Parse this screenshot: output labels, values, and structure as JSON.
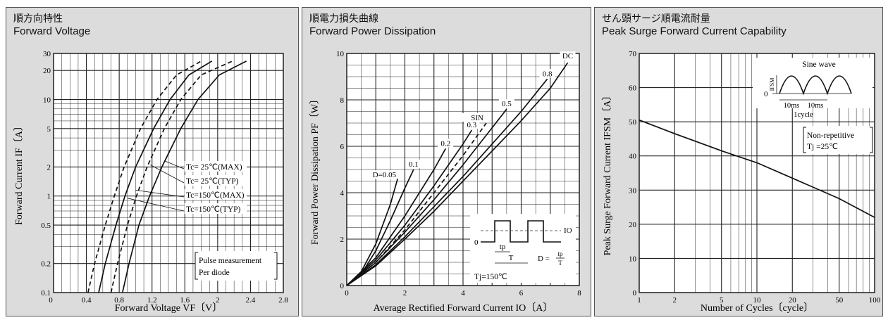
{
  "panels": [
    {
      "title_jp": "順方向特性",
      "title_en": "Forward Voltage"
    },
    {
      "title_jp": "順電力損失曲線",
      "title_en": "Forward Power Dissipation"
    },
    {
      "title_jp": "せん頭サージ順電流耐量",
      "title_en": "Peak Surge Forward Current Capability"
    }
  ],
  "chart_data": [
    {
      "type": "line",
      "title": "Forward Voltage",
      "xlabel": "Forward Voltage  VF〔V〕",
      "ylabel": "Forward Current  IF〔A〕",
      "xlim": [
        0,
        2.8
      ],
      "ylim": [
        0.1,
        30
      ],
      "yscale": "log",
      "x_ticks": [
        "0",
        "0.4",
        "0.8",
        "1.2",
        "1.6",
        "2",
        "2.4",
        "2.8"
      ],
      "y_ticks": [
        "0.1",
        "0.2",
        "0.5",
        "1",
        "2",
        "5",
        "10",
        "20",
        "30"
      ],
      "series": [
        {
          "name": "Tc= 25℃(MAX)",
          "dash": false,
          "points": [
            [
              0.84,
              0.1
            ],
            [
              0.92,
              0.2
            ],
            [
              1.04,
              0.5
            ],
            [
              1.17,
              1
            ],
            [
              1.32,
              2
            ],
            [
              1.55,
              5
            ],
            [
              1.76,
              10
            ],
            [
              2.02,
              18
            ],
            [
              2.35,
              25
            ]
          ]
        },
        {
          "name": "Tc= 25℃(TYP)",
          "dash": true,
          "points": [
            [
              0.7,
              0.1
            ],
            [
              0.78,
              0.2
            ],
            [
              0.9,
              0.5
            ],
            [
              1.01,
              1
            ],
            [
              1.14,
              2
            ],
            [
              1.35,
              5
            ],
            [
              1.55,
              10
            ],
            [
              1.8,
              18
            ],
            [
              2.18,
              25
            ]
          ]
        },
        {
          "name": "Tc=150℃(MAX)",
          "dash": false,
          "points": [
            [
              0.55,
              0.1
            ],
            [
              0.63,
              0.2
            ],
            [
              0.76,
              0.5
            ],
            [
              0.87,
              1
            ],
            [
              1.0,
              2
            ],
            [
              1.22,
              5
            ],
            [
              1.42,
              10
            ],
            [
              1.65,
              18
            ],
            [
              1.93,
              25
            ]
          ]
        },
        {
          "name": "Tc=150℃(TYP)",
          "dash": true,
          "points": [
            [
              0.42,
              0.1
            ],
            [
              0.5,
              0.2
            ],
            [
              0.63,
              0.5
            ],
            [
              0.74,
              1
            ],
            [
              0.86,
              2
            ],
            [
              1.06,
              5
            ],
            [
              1.26,
              10
            ],
            [
              1.5,
              18
            ],
            [
              1.8,
              25
            ]
          ]
        }
      ],
      "annotations": [
        "Pulse measurement",
        "Per diode"
      ]
    },
    {
      "type": "line",
      "title": "Forward Power Dissipation",
      "xlabel": "Average Rectified Forward Current  IO〔A〕",
      "ylabel": "Forward Power Dissipation  PF〔W〕",
      "xlim": [
        0,
        8
      ],
      "ylim": [
        0,
        10
      ],
      "x_ticks": [
        "0",
        "2",
        "4",
        "6",
        "8"
      ],
      "y_ticks": [
        "0",
        "2",
        "4",
        "6",
        "8",
        "10"
      ],
      "series": [
        {
          "name": "D=0.05",
          "dash": false,
          "points": [
            [
              0,
              0
            ],
            [
              0.5,
              0.6
            ],
            [
              1.0,
              1.8
            ],
            [
              1.5,
              3.5
            ],
            [
              1.75,
              4.6
            ]
          ]
        },
        {
          "name": "0.1",
          "dash": false,
          "points": [
            [
              0,
              0
            ],
            [
              0.5,
              0.5
            ],
            [
              1.0,
              1.5
            ],
            [
              1.5,
              2.8
            ],
            [
              2.0,
              4.2
            ],
            [
              2.3,
              5.0
            ]
          ]
        },
        {
          "name": "0.2",
          "dash": false,
          "points": [
            [
              0,
              0
            ],
            [
              1.0,
              1.2
            ],
            [
              2.0,
              3.0
            ],
            [
              3.0,
              5.0
            ],
            [
              3.4,
              5.9
            ]
          ]
        },
        {
          "name": "0.3",
          "dash": false,
          "points": [
            [
              0,
              0
            ],
            [
              1.0,
              1.1
            ],
            [
              2.0,
              2.6
            ],
            [
              3.0,
              4.3
            ],
            [
              4.0,
              6.1
            ],
            [
              4.3,
              6.7
            ]
          ]
        },
        {
          "name": "SIN",
          "dash": true,
          "points": [
            [
              0,
              0
            ],
            [
              1.0,
              1.0
            ],
            [
              2.0,
              2.4
            ],
            [
              3.0,
              4.0
            ],
            [
              4.0,
              5.6
            ],
            [
              4.8,
              7.0
            ]
          ]
        },
        {
          "name": "0.5",
          "dash": false,
          "points": [
            [
              0,
              0
            ],
            [
              1.0,
              1.0
            ],
            [
              2.0,
              2.3
            ],
            [
              3.0,
              3.7
            ],
            [
              4.0,
              5.2
            ],
            [
              5.0,
              6.8
            ],
            [
              5.5,
              7.6
            ]
          ]
        },
        {
          "name": "0.8",
          "dash": false,
          "points": [
            [
              0,
              0
            ],
            [
              1.0,
              0.9
            ],
            [
              2.0,
              2.1
            ],
            [
              3.0,
              3.4
            ],
            [
              4.0,
              4.7
            ],
            [
              5.0,
              6.1
            ],
            [
              6.0,
              7.5
            ],
            [
              6.9,
              8.9
            ]
          ]
        },
        {
          "name": "DC",
          "dash": false,
          "points": [
            [
              0,
              0
            ],
            [
              1.0,
              0.85
            ],
            [
              2.0,
              2.0
            ],
            [
              3.0,
              3.2
            ],
            [
              4.0,
              4.5
            ],
            [
              5.0,
              5.8
            ],
            [
              6.0,
              7.1
            ],
            [
              7.0,
              8.5
            ],
            [
              7.6,
              9.6
            ]
          ]
        }
      ],
      "labels": [
        "D=0.05",
        "0.1",
        "0.2",
        "0.3",
        "SIN",
        "0.5",
        "0.8",
        "DC"
      ],
      "inset": {
        "io": "IO",
        "tp": "tp",
        "t": "T",
        "zero": "0",
        "duty_num": "tp",
        "duty_den": "T",
        "duty_lhs": "D ="
      },
      "annotations": [
        "Tj=150℃"
      ]
    },
    {
      "type": "line",
      "title": "Peak Surge Forward Current Capability",
      "xlabel": "Number of Cycles〔cycle〕",
      "ylabel": "Peak Surge Forward Current  IFSM〔A〕",
      "xlim": [
        1,
        100
      ],
      "xscale": "log",
      "ylim": [
        0,
        70
      ],
      "x_ticks": [
        "1",
        "2",
        "5",
        "10",
        "20",
        "50",
        "100"
      ],
      "y_ticks": [
        "0",
        "10",
        "20",
        "30",
        "40",
        "50",
        "60",
        "70"
      ],
      "series": [
        {
          "name": "",
          "dash": false,
          "points": [
            [
              1,
              50.5
            ],
            [
              2,
              46.5
            ],
            [
              5,
              41.5
            ],
            [
              10,
              38
            ],
            [
              20,
              33.5
            ],
            [
              50,
              27.5
            ],
            [
              100,
              22
            ]
          ]
        }
      ],
      "inset": {
        "title": "Sine wave",
        "ifsm": "IFSM",
        "zero": "0",
        "t1": "10ms",
        "t2": "10ms",
        "cycle": "1cycle"
      },
      "annotations": [
        "Non-repetitive",
        "Tj =25℃"
      ]
    }
  ]
}
